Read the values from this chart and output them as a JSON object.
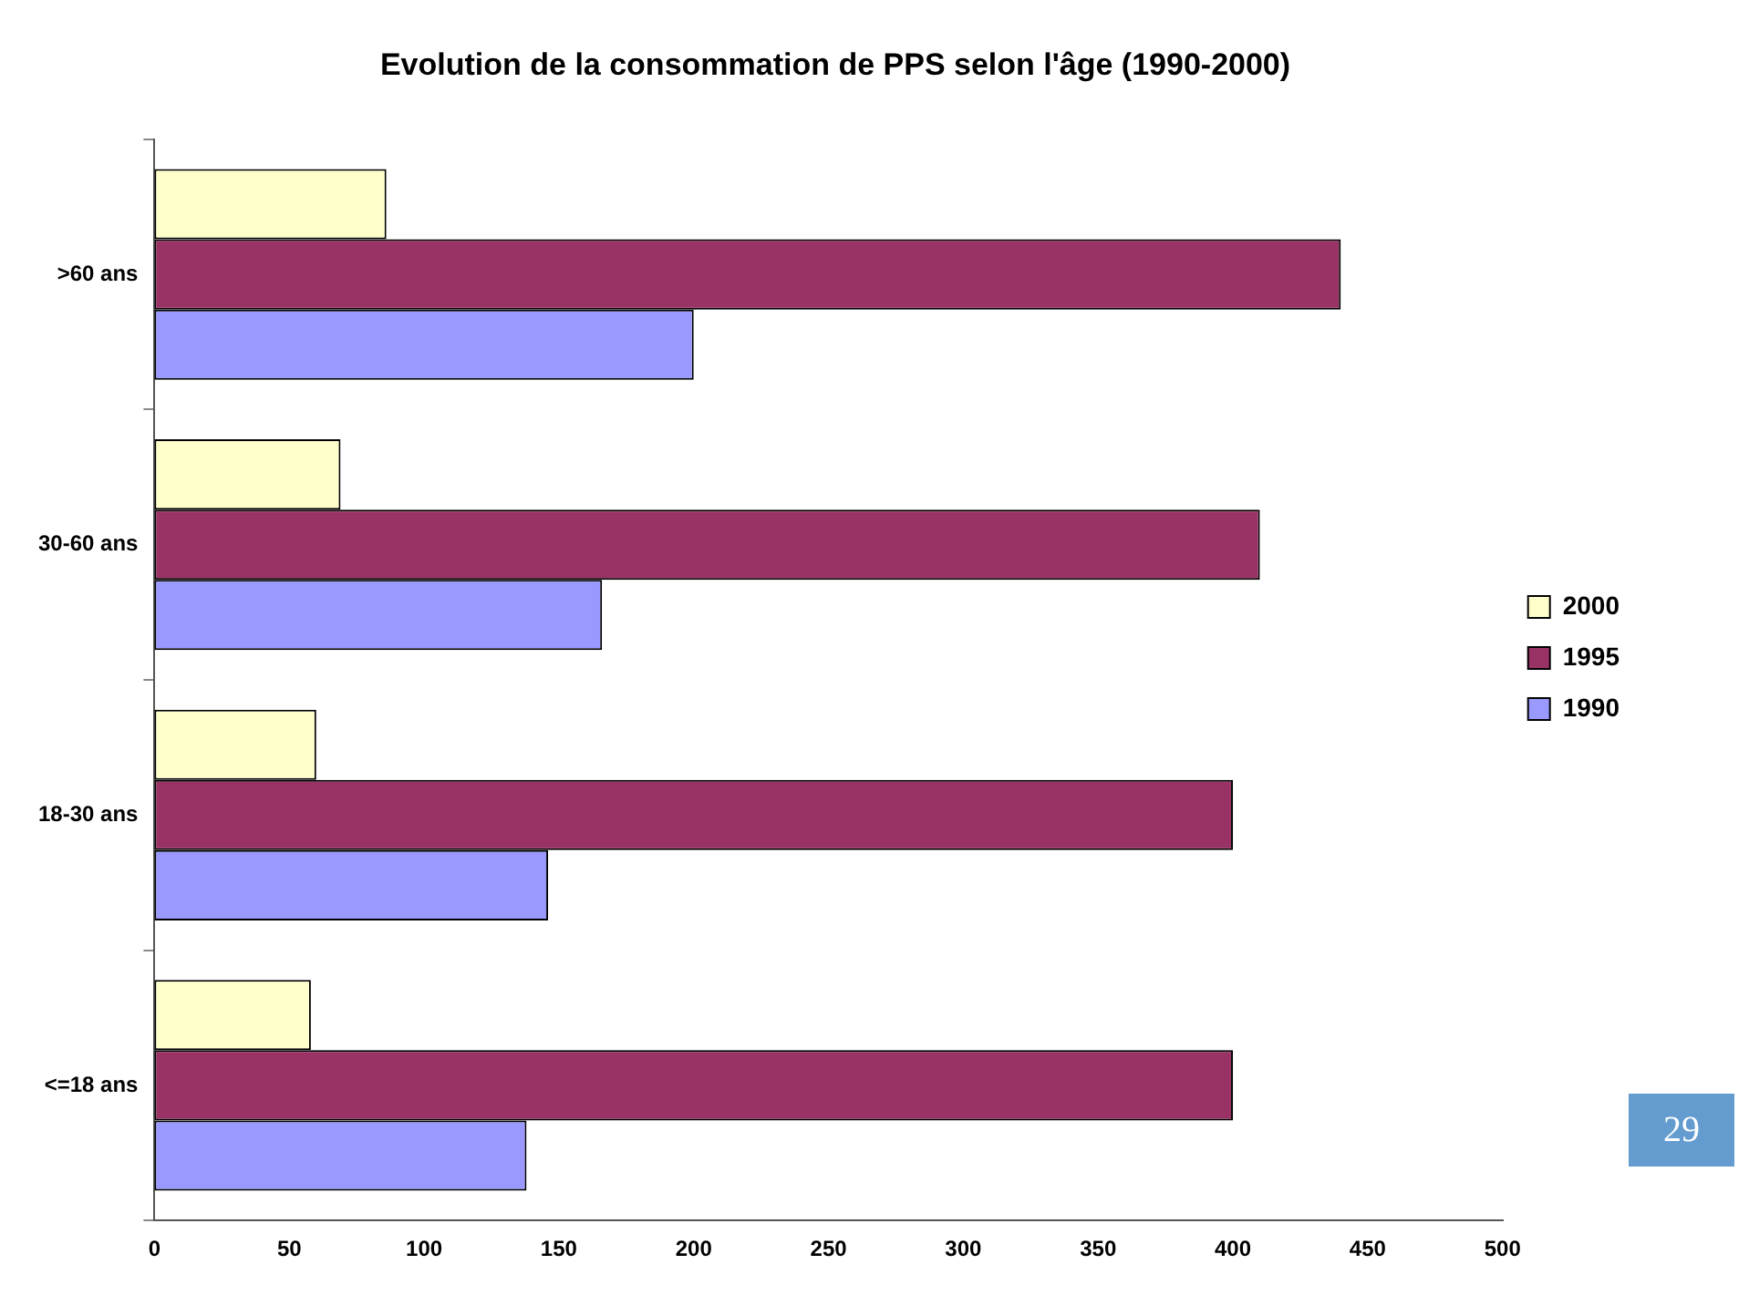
{
  "chart_data": {
    "type": "bar",
    "orientation": "horizontal",
    "title": "Evolution de la consommation de PPS selon l'âge (1990-2000)",
    "categories": [
      ">60 ans",
      "30-60 ans",
      "18-30 ans",
      "<=18 ans"
    ],
    "series": [
      {
        "name": "2000",
        "color": "#ffffcc",
        "values": [
          86,
          69,
          60,
          58
        ]
      },
      {
        "name": "1995",
        "color": "#993366",
        "values": [
          440,
          410,
          400,
          400
        ]
      },
      {
        "name": "1990",
        "color": "#9999ff",
        "values": [
          200,
          166,
          146,
          138
        ]
      }
    ],
    "xlim": [
      0,
      500
    ],
    "xticks": [
      0,
      50,
      100,
      150,
      200,
      250,
      300,
      350,
      400,
      450,
      500
    ],
    "grid": false,
    "legend": "right",
    "annotations": [
      "29"
    ]
  }
}
